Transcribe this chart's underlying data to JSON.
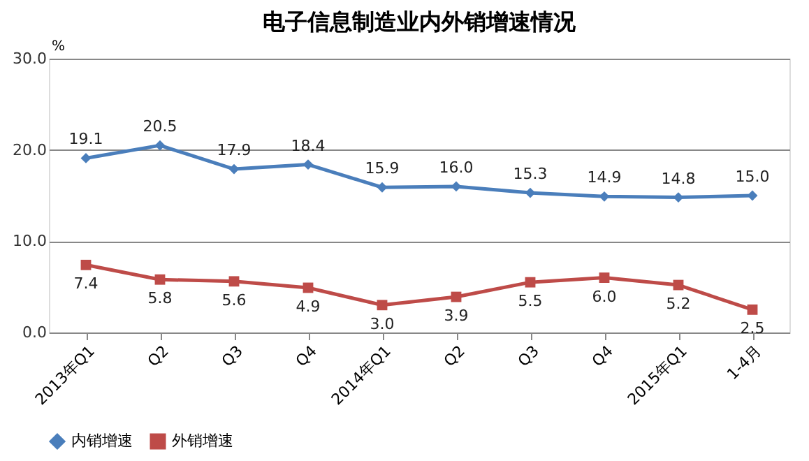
{
  "chart_data": {
    "type": "line",
    "title": "电子信息制造业内外销增速情况",
    "ylabel": "%",
    "categories": [
      "2013年Q1",
      "Q2",
      "Q3",
      "Q4",
      "2014年Q1",
      "Q2",
      "Q3",
      "Q4",
      "2015年Q1",
      "1-4月"
    ],
    "series": [
      {
        "name": "内销增速",
        "color": "#4a7ebb",
        "marker": "diamond",
        "values": [
          19.1,
          20.5,
          17.9,
          18.4,
          15.9,
          16.0,
          15.3,
          14.9,
          14.8,
          15.0
        ],
        "value_labels": [
          "19.1",
          "20.5",
          "17.9",
          "18.4",
          "15.9",
          "16.0",
          "15.3",
          "14.9",
          "14.8",
          "15.0"
        ]
      },
      {
        "name": "外销增速",
        "color": "#be4b48",
        "marker": "square",
        "values": [
          7.4,
          5.8,
          5.6,
          4.9,
          3.0,
          3.9,
          5.5,
          6.0,
          5.2,
          2.5
        ],
        "value_labels": [
          "7.4",
          "5.8",
          "5.6",
          "4.9",
          "3.0",
          "3.9",
          "5.5",
          "6.0",
          "5.2",
          "2.5"
        ]
      }
    ],
    "ylim": [
      0,
      30
    ],
    "yticks": [
      {
        "value": 0,
        "label": "0.0"
      },
      {
        "value": 10,
        "label": "10.0"
      },
      {
        "value": 20,
        "label": "20.0"
      },
      {
        "value": 30,
        "label": "30.0"
      }
    ],
    "grid": "y",
    "legend": "bottom",
    "line_style": "solid"
  }
}
